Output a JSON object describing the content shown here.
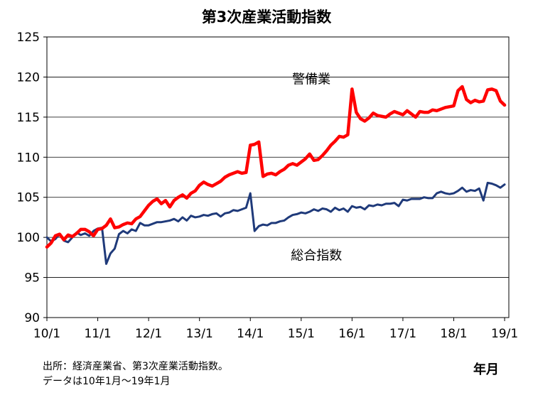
{
  "chart_data": {
    "type": "line",
    "title": "第3次産業活動指数",
    "ylim": [
      90,
      125
    ],
    "yticks": [
      90,
      95,
      100,
      105,
      110,
      115,
      120,
      125
    ],
    "x_range": [
      2010.0,
      2019.083
    ],
    "xticks": [
      "10/1",
      "11/1",
      "12/1",
      "13/1",
      "14/1",
      "15/1",
      "16/1",
      "17/1",
      "18/1",
      "19/1"
    ],
    "xtick_values": [
      2010.0,
      2011.0,
      2012.0,
      2013.0,
      2014.0,
      2015.0,
      2016.0,
      2017.0,
      2018.0,
      2019.0
    ],
    "xlabel": "年月",
    "grid": "horizontal",
    "series": [
      {
        "name": "警備業",
        "color": "#ff0000",
        "x_start": 2010.0,
        "x_step": 0.08333,
        "values": [
          98.8,
          99.3,
          100.2,
          100.4,
          99.7,
          100.3,
          100.1,
          100.5,
          101.0,
          101.0,
          100.7,
          100.2,
          101.0,
          101.1,
          101.5,
          102.3,
          101.2,
          101.3,
          101.6,
          101.8,
          101.7,
          102.3,
          102.6,
          103.3,
          104.0,
          104.5,
          104.8,
          104.2,
          104.6,
          103.8,
          104.6,
          105.0,
          105.3,
          104.9,
          105.5,
          105.8,
          106.5,
          106.9,
          106.6,
          106.4,
          106.7,
          107.0,
          107.5,
          107.8,
          108.0,
          108.2,
          108.0,
          108.1,
          111.5,
          111.6,
          111.9,
          107.6,
          107.9,
          108.0,
          107.8,
          108.2,
          108.5,
          109.0,
          109.2,
          109.0,
          109.4,
          109.8,
          110.4,
          109.6,
          109.7,
          110.2,
          110.8,
          111.5,
          112.0,
          112.6,
          112.5,
          112.8,
          118.5,
          115.6,
          114.8,
          114.5,
          114.9,
          115.5,
          115.2,
          115.1,
          115.0,
          115.4,
          115.7,
          115.5,
          115.3,
          115.8,
          115.4,
          115.0,
          115.7,
          115.6,
          115.6,
          115.9,
          115.8,
          116.0,
          116.2,
          116.3,
          116.4,
          118.3,
          118.8,
          117.2,
          116.8,
          117.1,
          116.9,
          117.0,
          118.4,
          118.5,
          118.3,
          117.0,
          116.5
        ]
      },
      {
        "name": "総合指数",
        "color": "#1f3a7a",
        "x_start": 2010.0,
        "x_step": 0.08333,
        "values": [
          100.0,
          99.5,
          99.8,
          100.4,
          99.6,
          99.4,
          100.0,
          100.6,
          100.3,
          100.5,
          100.2,
          100.8,
          101.1,
          101.2,
          96.7,
          98.0,
          98.6,
          100.4,
          100.8,
          100.5,
          101.0,
          100.8,
          101.8,
          101.5,
          101.5,
          101.7,
          101.9,
          101.9,
          102.0,
          102.1,
          102.3,
          102.0,
          102.5,
          102.1,
          102.7,
          102.5,
          102.6,
          102.8,
          102.7,
          102.9,
          103.0,
          102.6,
          103.0,
          103.1,
          103.4,
          103.3,
          103.5,
          103.7,
          105.5,
          100.8,
          101.4,
          101.6,
          101.5,
          101.8,
          101.8,
          102.0,
          102.1,
          102.5,
          102.8,
          102.9,
          103.1,
          103.0,
          103.2,
          103.5,
          103.3,
          103.6,
          103.5,
          103.2,
          103.7,
          103.4,
          103.6,
          103.2,
          103.9,
          103.7,
          103.8,
          103.5,
          104.0,
          103.9,
          104.1,
          104.0,
          104.2,
          104.2,
          104.3,
          103.9,
          104.7,
          104.6,
          104.8,
          104.8,
          104.8,
          105.0,
          104.9,
          104.9,
          105.5,
          105.7,
          105.5,
          105.4,
          105.5,
          105.8,
          106.2,
          105.7,
          105.9,
          105.8,
          106.1,
          104.6,
          106.8,
          106.7,
          106.5,
          106.2,
          106.6
        ]
      }
    ],
    "annotations": [
      {
        "text": "警備業",
        "x": 2015.2,
        "y": 119.2
      },
      {
        "text": "総合指数",
        "x": 2015.3,
        "y": 97.2
      }
    ]
  },
  "footer": {
    "source": "出所：経済産業省、第3次産業活動指数。",
    "note": "データは10年1月～19年1月"
  }
}
